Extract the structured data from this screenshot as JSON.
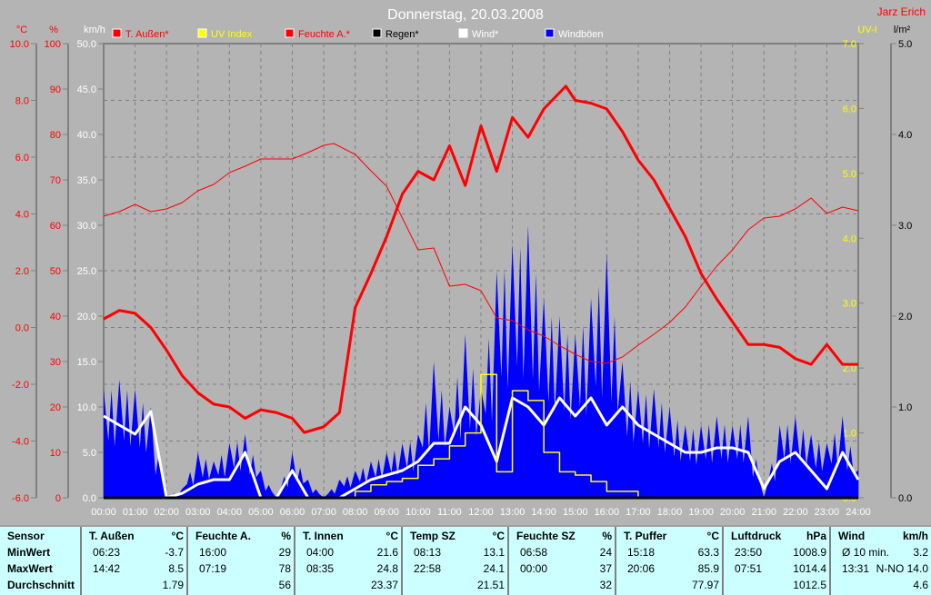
{
  "title": "Donnerstag, 20.03.2008",
  "author": "Jarz Erich",
  "colors": {
    "temp": "#ff0000",
    "uv": "#ffff00",
    "hum": "#ff0000",
    "rain": "#000000",
    "wind": "#ffffff",
    "gust": "#0000ff",
    "bg": "#b4b4b4",
    "table": "#ccffff"
  },
  "chart_data": {
    "type": "line",
    "title": "Donnerstag, 20.03.2008",
    "x_unit": "hours",
    "x_ticks": [
      "00:00",
      "01:00",
      "02:00",
      "03:00",
      "04:00",
      "05:00",
      "06:00",
      "07:00",
      "08:00",
      "09:00",
      "10:00",
      "11:00",
      "12:00",
      "13:00",
      "14:00",
      "15:00",
      "16:00",
      "17:00",
      "18:00",
      "19:00",
      "20:00",
      "21:00",
      "22:00",
      "23:00",
      "24:00"
    ],
    "axes": [
      {
        "id": "temp",
        "label": "°C",
        "range": [
          -6,
          10
        ],
        "ticks": [
          "-6.0",
          "-4.0",
          "-2.0",
          "0.0",
          "2.0",
          "4.0",
          "6.0",
          "8.0",
          "10.0"
        ],
        "side": "left",
        "color": "#ff0000"
      },
      {
        "id": "hum",
        "label": "%",
        "range": [
          0,
          100
        ],
        "ticks": [
          "0",
          "10",
          "20",
          "30",
          "40",
          "50",
          "60",
          "70",
          "80",
          "90",
          "100"
        ],
        "side": "left",
        "color": "#ff0000"
      },
      {
        "id": "kmh",
        "label": "km/h",
        "range": [
          0,
          50
        ],
        "ticks": [
          "0.0",
          "5.0",
          "10.0",
          "15.0",
          "20.0",
          "25.0",
          "30.0",
          "35.0",
          "40.0",
          "45.0",
          "50.0"
        ],
        "side": "left",
        "color": "#ffffff"
      },
      {
        "id": "uv",
        "label": "UV-I",
        "range": [
          0,
          7
        ],
        "ticks": [
          "0.0",
          "1.0",
          "2.0",
          "3.0",
          "4.0",
          "5.0",
          "6.0",
          "7.0"
        ],
        "side": "right",
        "color": "#ffff00"
      },
      {
        "id": "rain",
        "label": "l/m²",
        "range": [
          0,
          5
        ],
        "ticks": [
          "0.0",
          "1.0",
          "2.0",
          "3.0",
          "4.0",
          "5.0"
        ],
        "side": "right",
        "color": "#000000"
      }
    ],
    "legend": [
      {
        "name": "T. Außen*",
        "color": "#ff0000",
        "text_color": "#ff0000"
      },
      {
        "name": "UV Index",
        "color": "#ffff00",
        "text_color": "#ffff00"
      },
      {
        "name": "Feuchte A.*",
        "color": "#ff0000",
        "text_color": "#ff0000"
      },
      {
        "name": "Regen*",
        "color": "#000000",
        "text_color": "#000000"
      },
      {
        "name": "Wind*",
        "color": "#ffffff",
        "text_color": "#ffffff"
      },
      {
        "name": "Windböen",
        "color": "#0000ff",
        "text_color": "#ffffff"
      }
    ],
    "series": [
      {
        "name": "Windböen",
        "axis": "kmh",
        "kind": "area",
        "color": "#0000ff",
        "x": [
          0,
          0.5,
          1,
          1.5,
          2,
          2.5,
          3,
          3.5,
          4,
          4.5,
          5,
          5.5,
          6,
          6.5,
          7,
          7.5,
          8,
          8.5,
          9,
          9.5,
          10,
          10.5,
          11,
          11.5,
          12,
          12.5,
          13,
          13.5,
          14,
          14.5,
          15,
          15.5,
          16,
          16.5,
          17,
          17.5,
          18,
          18.5,
          19,
          19.5,
          20,
          20.5,
          21,
          21.5,
          22,
          22.5,
          23,
          23.5,
          24
        ],
        "y": [
          12,
          13,
          12,
          10,
          0,
          1,
          5,
          4,
          6,
          7,
          3,
          0,
          5,
          2,
          0,
          2,
          3,
          4,
          5,
          6,
          7,
          15,
          10,
          18,
          12,
          25,
          28,
          30,
          22,
          20,
          18,
          22,
          27,
          15,
          12,
          12,
          10,
          8,
          8,
          9,
          8,
          9,
          0,
          8,
          9,
          7,
          6,
          9,
          3
        ]
      },
      {
        "name": "Wind*",
        "axis": "kmh",
        "kind": "line",
        "color": "#ffffff",
        "x": [
          0,
          0.5,
          1,
          1.5,
          2,
          2.5,
          3,
          3.5,
          4,
          4.5,
          5,
          5.5,
          6,
          6.5,
          7,
          7.5,
          8,
          8.5,
          9,
          9.5,
          10,
          10.5,
          11,
          11.5,
          12,
          12.5,
          13,
          13.5,
          14,
          14.5,
          15,
          15.5,
          16,
          16.5,
          17,
          17.5,
          18,
          18.5,
          19,
          19.5,
          20,
          20.5,
          21,
          21.5,
          22,
          22.5,
          23,
          23.5,
          24
        ],
        "y": [
          9,
          8,
          7,
          9.5,
          0,
          0.5,
          1.5,
          2,
          2,
          5,
          0,
          0,
          3,
          0,
          0,
          0,
          1,
          2,
          2.5,
          3,
          4,
          6,
          6,
          10,
          8,
          4,
          11,
          10,
          8,
          11,
          9,
          11,
          8,
          10,
          8,
          7,
          6,
          5,
          5,
          5.5,
          5.5,
          5,
          1,
          4,
          5,
          3,
          1,
          5,
          2
        ]
      },
      {
        "name": "T. Außen*",
        "axis": "temp",
        "kind": "line",
        "color": "#ff0000",
        "width": 3,
        "x": [
          0,
          0.5,
          1,
          1.5,
          2,
          2.5,
          3,
          3.5,
          4,
          4.5,
          5,
          5.5,
          6,
          6.38,
          7,
          7.5,
          8,
          8.5,
          9,
          9.5,
          10,
          10.5,
          11,
          11.5,
          12,
          12.5,
          13,
          13.5,
          14,
          14.7,
          15,
          15.5,
          16,
          16.5,
          17,
          17.5,
          18,
          18.5,
          19,
          19.5,
          20,
          20.5,
          21,
          21.5,
          22,
          22.5,
          23,
          23.5,
          24
        ],
        "y": [
          0.3,
          0.6,
          0.5,
          0.0,
          -0.8,
          -1.7,
          -2.3,
          -2.7,
          -2.8,
          -3.2,
          -2.9,
          -3.0,
          -3.2,
          -3.7,
          -3.5,
          -3.0,
          0.7,
          1.9,
          3.2,
          4.7,
          5.5,
          5.2,
          6.4,
          5.0,
          7.1,
          5.5,
          7.4,
          6.7,
          7.7,
          8.5,
          8.0,
          7.9,
          7.7,
          6.9,
          5.9,
          5.2,
          4.2,
          3.2,
          1.9,
          1.0,
          0.2,
          -0.6,
          -0.6,
          -0.7,
          -1.1,
          -1.3,
          -0.6,
          -1.3,
          -1.3
        ]
      },
      {
        "name": "Feuchte A.*",
        "axis": "hum",
        "kind": "line",
        "color": "#ff0000",
        "width": 1,
        "x": [
          0,
          0.5,
          1,
          1.5,
          2,
          2.5,
          3,
          3.5,
          4,
          4.5,
          5,
          5.5,
          6,
          6.5,
          7,
          7.32,
          8,
          8.5,
          9,
          9.5,
          10,
          10.5,
          11,
          11.5,
          12,
          12.5,
          13,
          13.5,
          14,
          14.5,
          15,
          15.5,
          16,
          16.5,
          17,
          17.5,
          18,
          18.5,
          19,
          19.5,
          20,
          20.5,
          21,
          21.5,
          22,
          22.5,
          23,
          23.5,
          24
        ],
        "y": [
          62,
          63,
          64.6,
          63,
          63.6,
          65,
          67.6,
          69,
          71.6,
          73,
          74.6,
          74.6,
          74.6,
          76,
          77.6,
          78,
          75.6,
          72,
          68.6,
          61.6,
          54.6,
          55,
          46.6,
          47,
          45.6,
          39.6,
          39,
          37,
          35.6,
          33.5,
          31.6,
          30,
          29.6,
          31,
          33.6,
          36,
          38.6,
          42,
          46.6,
          51,
          54.6,
          59,
          61.6,
          62,
          63.6,
          66,
          62.6,
          64,
          63.2
        ]
      },
      {
        "name": "UV Index",
        "axis": "uv",
        "kind": "step",
        "color": "#ffff00",
        "x": [
          0,
          7.6,
          8,
          8.5,
          9,
          9.5,
          10,
          10.5,
          11,
          11.5,
          12,
          12.5,
          13,
          13.5,
          14,
          14.5,
          15,
          15.5,
          16,
          16.5,
          17,
          24
        ],
        "y": [
          0,
          0,
          0.1,
          0.2,
          0.25,
          0.3,
          0.5,
          0.6,
          0.8,
          1.0,
          1.9,
          0.4,
          1.65,
          1.5,
          0.7,
          0.4,
          0.35,
          0.25,
          0.1,
          0.1,
          0,
          0
        ]
      },
      {
        "name": "Regen*",
        "axis": "rain",
        "kind": "line",
        "color": "#000000",
        "x": [
          0,
          24
        ],
        "y": [
          0,
          0
        ]
      }
    ]
  },
  "table": {
    "sensor_col": [
      "Sensor",
      "MinWert",
      "MaxWert",
      "Durchschnitt"
    ],
    "columns": [
      {
        "name": "T. Außen",
        "unit": "°C",
        "min_time": "06:23",
        "min": "-3.7",
        "max_time": "14:42",
        "max": "8.5",
        "avg": "1.79"
      },
      {
        "name": "Feuchte A.",
        "unit": "%",
        "min_time": "16:00",
        "min": "29",
        "max_time": "07:19",
        "max": "78",
        "avg": "56"
      },
      {
        "name": "T. Innen",
        "unit": "°C",
        "min_time": "04:00",
        "min": "21.6",
        "max_time": "08:35",
        "max": "24.8",
        "avg": "23.37"
      },
      {
        "name": "Temp SZ",
        "unit": "°C",
        "min_time": "08:13",
        "min": "13.1",
        "max_time": "22:58",
        "max": "24.1",
        "avg": "21.51"
      },
      {
        "name": "Feuchte SZ",
        "unit": "%",
        "min_time": "06:58",
        "min": "24",
        "max_time": "00:00",
        "max": "37",
        "avg": "32"
      },
      {
        "name": "T. Puffer",
        "unit": "°C",
        "min_time": "15:18",
        "min": "63.3",
        "max_time": "20:06",
        "max": "85.9",
        "avg": "77.97"
      },
      {
        "name": "Luftdruck",
        "unit": "hPa",
        "min_time": "23:50",
        "min": "1008.9",
        "max_time": "07:51",
        "max": "1014.4",
        "avg": "1012.5"
      },
      {
        "name": "Wind",
        "unit": "km/h",
        "min_time": "Ø 10 min.",
        "min": "3.2",
        "max_time": "13:31",
        "max": "N-NO 14.0",
        "avg": "4.6"
      }
    ]
  }
}
